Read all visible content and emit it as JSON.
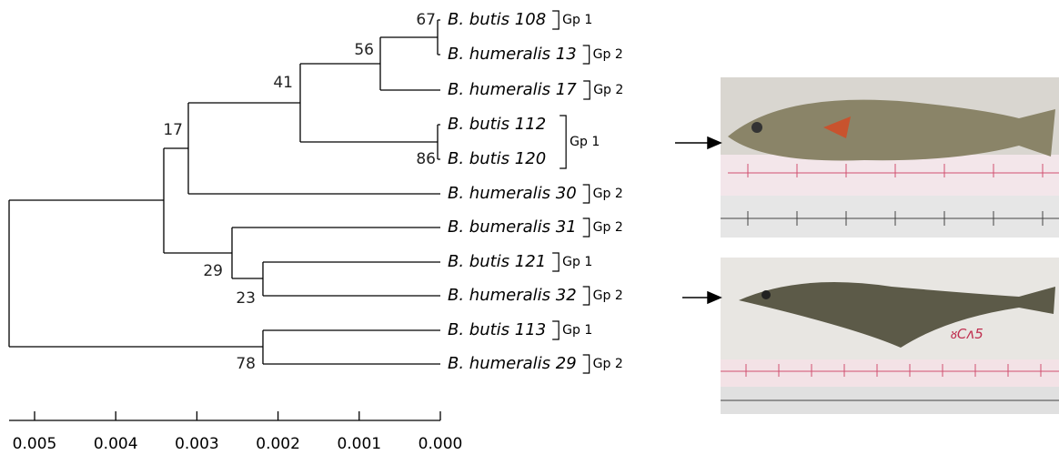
{
  "tree": {
    "leaves": [
      "B. butis 108",
      "B. humeralis 13",
      "B. humeralis 17",
      "B. butis 112",
      "B. butis 120",
      "B. humeralis 30",
      "B. bumeralis 31",
      "B. butis 121",
      "B. humeralis 32",
      "B. butis 113",
      "B. humeralis 29"
    ],
    "bootstrap": [
      "67",
      "56",
      "41",
      "17",
      "86",
      "29",
      "23",
      "78"
    ],
    "groups": [
      {
        "label": "Gp 1",
        "leaves": [
          0
        ]
      },
      {
        "label": "Gp 2",
        "leaves": [
          1
        ]
      },
      {
        "label": "Gp 2",
        "leaves": [
          2
        ]
      },
      {
        "label": "Gp 1",
        "leaves": [
          3,
          4
        ]
      },
      {
        "label": "Gp 2",
        "leaves": [
          5
        ]
      },
      {
        "label": "Gp 2",
        "leaves": [
          6
        ]
      },
      {
        "label": "Gp 1",
        "leaves": [
          7
        ]
      },
      {
        "label": "Gp 2",
        "leaves": [
          8
        ]
      },
      {
        "label": "Gp 1",
        "leaves": [
          9
        ]
      },
      {
        "label": "Gp 2",
        "leaves": [
          10
        ]
      }
    ],
    "scale_ticks": [
      0.005,
      0.004,
      0.003,
      0.002,
      0.001,
      {
        "value": 0,
        "label": "0.000"
      }
    ]
  }
}
